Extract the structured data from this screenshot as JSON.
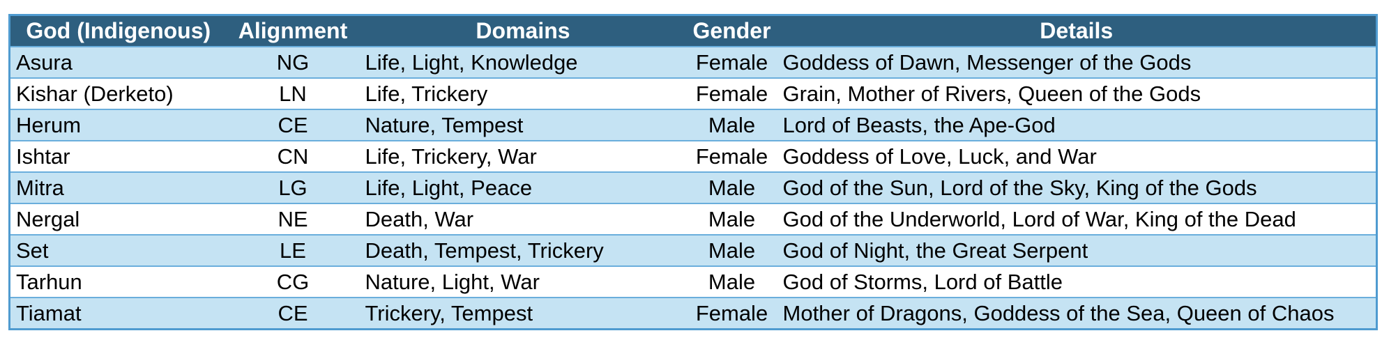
{
  "table": {
    "headers": {
      "god": "God (Indigenous)",
      "alignment": "Alignment",
      "domains": "Domains",
      "gender": "Gender",
      "details": "Details"
    },
    "rows": [
      {
        "god": "Asura",
        "alignment": "NG",
        "domains": "Life, Light, Knowledge",
        "gender": "Female",
        "details": "Goddess of Dawn, Messenger of the Gods"
      },
      {
        "god": "Kishar (Derketo)",
        "alignment": "LN",
        "domains": "Life, Trickery",
        "gender": "Female",
        "details": "Grain, Mother of Rivers, Queen of the Gods"
      },
      {
        "god": "Herum",
        "alignment": "CE",
        "domains": "Nature, Tempest",
        "gender": "Male",
        "details": "Lord of Beasts, the Ape-God"
      },
      {
        "god": "Ishtar",
        "alignment": "CN",
        "domains": "Life, Trickery, War",
        "gender": "Female",
        "details": "Goddess of Love, Luck, and War"
      },
      {
        "god": "Mitra",
        "alignment": "LG",
        "domains": "Life, Light, Peace",
        "gender": "Male",
        "details": "God of the Sun, Lord of the Sky, King of the Gods"
      },
      {
        "god": "Nergal",
        "alignment": "NE",
        "domains": "Death, War",
        "gender": "Male",
        "details": "God of the Underworld, Lord of War, King of the Dead"
      },
      {
        "god": "Set",
        "alignment": "LE",
        "domains": "Death, Tempest, Trickery",
        "gender": "Male",
        "details": "God of Night, the Great Serpent"
      },
      {
        "god": "Tarhun",
        "alignment": "CG",
        "domains": "Nature, Light, War",
        "gender": "Male",
        "details": "God of Storms, Lord of Battle"
      },
      {
        "god": "Tiamat",
        "alignment": "CE",
        "domains": "Trickery, Tempest",
        "gender": "Female",
        "details": "Mother of Dragons, Goddess of the Sea, Queen of Chaos"
      }
    ]
  },
  "colors": {
    "header_background": "#2e5f7f",
    "header_text": "#ffffff",
    "band_row": "#c5e3f3",
    "plain_row": "#ffffff",
    "border": "#4f9bd0"
  }
}
